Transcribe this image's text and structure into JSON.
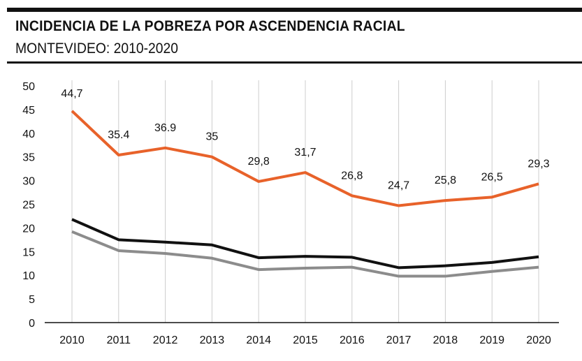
{
  "title": "INCIDENCIA DE LA POBREZA POR ASCENDENCIA RACIAL",
  "subtitle": "MONTEVIDEO: 2010-2020",
  "colors": {
    "rule": "#111111",
    "grid": "#cccccc",
    "afro": "#e8622a",
    "total": "#111111",
    "no_afro": "#8c8c8c"
  },
  "chart_data": {
    "type": "line",
    "title": "INCIDENCIA DE LA POBREZA POR ASCENDENCIA RACIAL",
    "subtitle": "MONTEVIDEO: 2010-2020",
    "xlabel": "",
    "ylabel": "",
    "ylim": [
      0,
      50
    ],
    "yticks": [
      "0",
      "5",
      "10",
      "15",
      "20",
      "25",
      "30",
      "35",
      "40",
      "45",
      "50"
    ],
    "categories": [
      "2010",
      "2011",
      "2012",
      "2013",
      "2014",
      "2015",
      "2016",
      "2017",
      "2018",
      "2019",
      "2020"
    ],
    "grid": "vertical",
    "series": [
      {
        "name": "orange",
        "color": "#e8622a",
        "values": [
          44.7,
          35.4,
          36.9,
          35,
          29.8,
          31.7,
          26.8,
          24.7,
          25.8,
          26.5,
          29.3
        ],
        "labels": [
          "44,7",
          "35.4",
          "36.9",
          "35",
          "29,8",
          "31,7",
          "26,8",
          "24,7",
          "25,8",
          "26,5",
          "29,3"
        ]
      },
      {
        "name": "black",
        "color": "#111111",
        "values": [
          21.8,
          17.5,
          17.0,
          16.4,
          13.7,
          14.0,
          13.8,
          11.6,
          12.0,
          12.7,
          13.9
        ]
      },
      {
        "name": "gray",
        "color": "#8c8c8c",
        "values": [
          19.2,
          15.2,
          14.6,
          13.6,
          11.2,
          11.5,
          11.7,
          9.8,
          9.8,
          10.8,
          11.7
        ]
      }
    ]
  }
}
